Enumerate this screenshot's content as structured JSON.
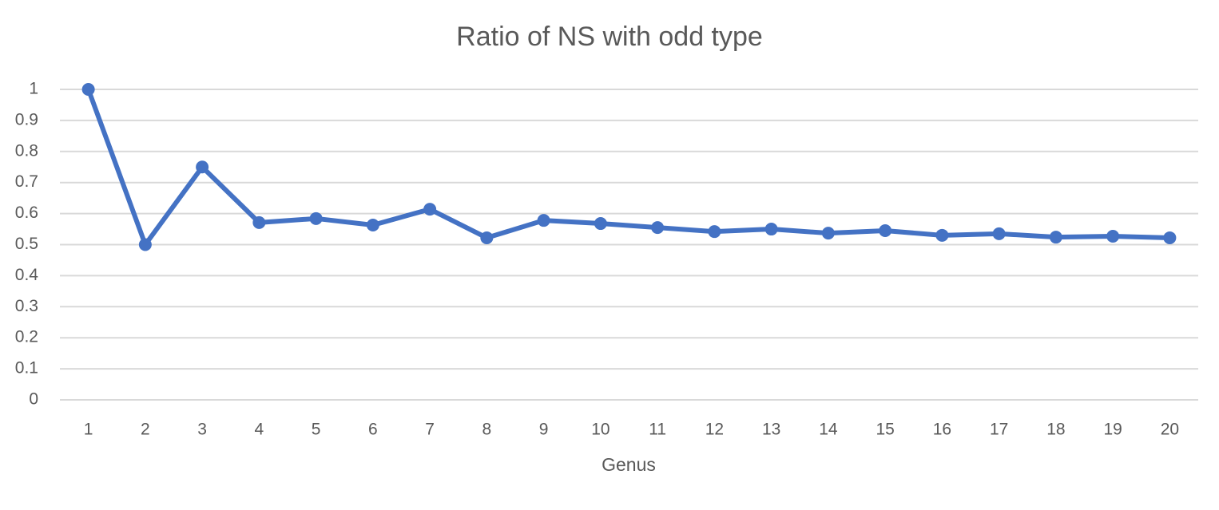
{
  "chart_data": {
    "type": "line",
    "title": "Ratio of NS with odd type",
    "x_label": "Genus",
    "categories": [
      "1",
      "2",
      "3",
      "4",
      "5",
      "6",
      "7",
      "8",
      "9",
      "10",
      "11",
      "12",
      "13",
      "14",
      "15",
      "16",
      "17",
      "18",
      "19",
      "20"
    ],
    "values": [
      1.0,
      0.5,
      0.75,
      0.571,
      0.584,
      0.563,
      0.614,
      0.522,
      0.578,
      0.568,
      0.555,
      0.542,
      0.55,
      0.537,
      0.545,
      0.53,
      0.535,
      0.524,
      0.527,
      0.522
    ],
    "color": "#4472c4",
    "ylim": [
      0,
      1
    ],
    "yticks": [
      0,
      0.1,
      0.2,
      0.3,
      0.4,
      0.5,
      0.6,
      0.7,
      0.8,
      0.9,
      1
    ],
    "grid": true
  }
}
